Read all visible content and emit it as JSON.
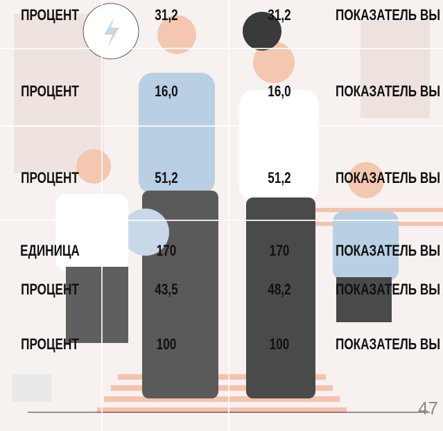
{
  "table": {
    "rows": [
      [
        "ПРОЦЕНТ",
        "31,2",
        "31,2",
        "ПОКАЗАТЕЛЬ ВЫ"
      ],
      [
        "ПРОЦЕНТ",
        "16,0",
        "16,0",
        "ПОКАЗАТЕЛЬ ВЫ"
      ],
      [
        "ПРОЦЕНТ",
        "51,2",
        "51,2",
        "ПОКАЗАТЕЛЬ ВЫ"
      ],
      [
        "ЕДИНИЦА",
        "170",
        "170",
        "ПОКАЗАТЕЛЬ ВЫ"
      ],
      [
        "ПРОЦЕНТ",
        "43,5",
        "48,2",
        "ПОКАЗАТЕЛЬ ВЫ"
      ],
      [
        "ПРОЦЕНТ",
        "100",
        "100",
        "ПОКАЗАТЕЛЬ ВЫ"
      ]
    ]
  },
  "page_number": "47"
}
